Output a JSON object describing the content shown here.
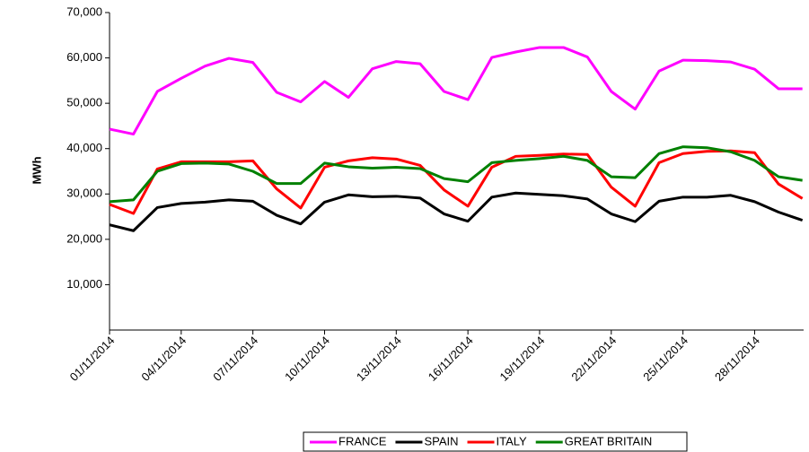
{
  "chart_data": {
    "type": "line",
    "y_label": "MWh",
    "categories": [
      "01/11/2014",
      null,
      null,
      "04/11/2014",
      null,
      null,
      "07/11/2014",
      null,
      null,
      "10/11/2014",
      null,
      null,
      "13/11/2014",
      null,
      null,
      "16/11/2014",
      null,
      null,
      "19/11/2014",
      null,
      null,
      "22/11/2014",
      null,
      null,
      "25/11/2014",
      null,
      null,
      "28/11/2014",
      null,
      null
    ],
    "series": [
      {
        "name": "FRANCE",
        "color": "#ff00ff",
        "values": [
          44300,
          43200,
          52600,
          55500,
          58200,
          59900,
          59000,
          52400,
          50300,
          54800,
          51300,
          57600,
          59200,
          58700,
          52600,
          50800,
          60100,
          61300,
          62300,
          62300,
          60200,
          52600,
          48700,
          57100,
          59500,
          59400,
          59100,
          57500,
          53200,
          53200
        ]
      },
      {
        "name": "SPAIN",
        "color": "#000000",
        "values": [
          23200,
          21900,
          27000,
          27900,
          28200,
          28700,
          28400,
          25300,
          23400,
          28200,
          29800,
          29400,
          29500,
          29100,
          25600,
          24000,
          29300,
          30200,
          29900,
          29600,
          28900,
          25600,
          23900,
          28400,
          29300,
          29300,
          29700,
          28300,
          26000,
          24200
        ]
      },
      {
        "name": "ITALY",
        "color": "#ff0000",
        "values": [
          27700,
          25700,
          35500,
          37100,
          37100,
          37100,
          37300,
          31100,
          26900,
          35900,
          37300,
          38000,
          37700,
          36300,
          30900,
          27300,
          35900,
          38300,
          38500,
          38800,
          38700,
          31500,
          27300,
          36900,
          38900,
          39400,
          39500,
          39100,
          32200,
          29000
        ]
      },
      {
        "name": "GREAT BRITAIN",
        "color": "#008000",
        "values": [
          28300,
          28700,
          35000,
          36700,
          36800,
          36600,
          35000,
          32300,
          32300,
          36800,
          36000,
          35700,
          35900,
          35600,
          33400,
          32700,
          36900,
          37400,
          37800,
          38300,
          37400,
          33800,
          33600,
          38900,
          40400,
          40200,
          39300,
          37400,
          33800,
          33000
        ]
      }
    ],
    "ylim": [
      0,
      70000
    ],
    "yticks": [
      {
        "value": 10000,
        "label": "10,000"
      },
      {
        "value": 20000,
        "label": "20,000"
      },
      {
        "value": 30000,
        "label": "30,000"
      },
      {
        "value": 40000,
        "label": "40,000"
      },
      {
        "value": 50000,
        "label": "50,000"
      },
      {
        "value": 60000,
        "label": "60,000"
      },
      {
        "value": 70000,
        "label": "70,000"
      }
    ],
    "grid": false,
    "legend": "bottom"
  }
}
